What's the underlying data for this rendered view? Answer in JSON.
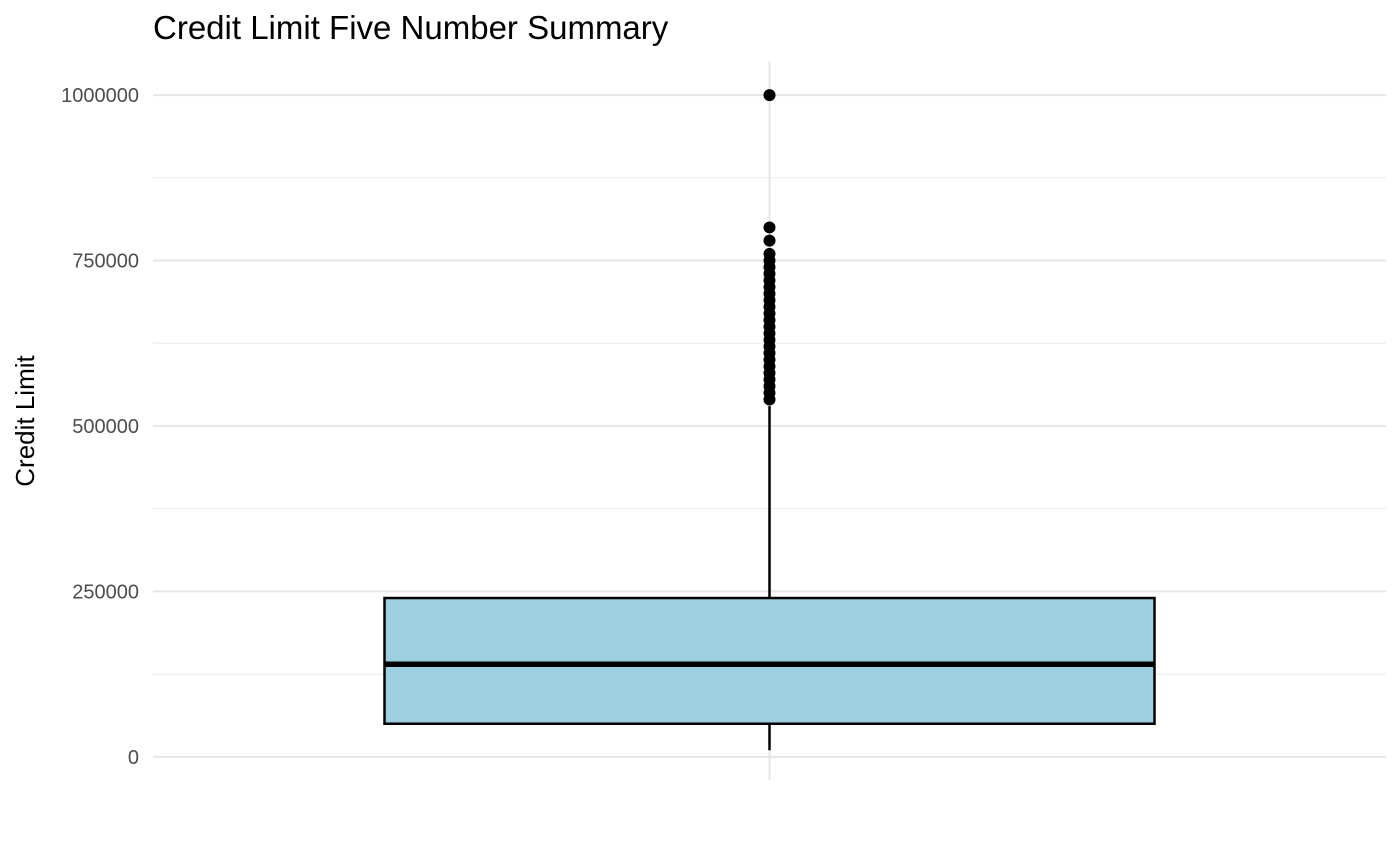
{
  "chart_data": {
    "type": "boxplot",
    "title": "Credit Limit Five Number Summary",
    "xlabel": "",
    "ylabel": "Credit Limit",
    "ylim": [
      -35000,
      1050000
    ],
    "y_ticks": [
      0,
      250000,
      500000,
      750000,
      1000000
    ],
    "y_tick_labels": [
      "0",
      "250000",
      "500000",
      "750000",
      "1000000"
    ],
    "grid": true,
    "legend": "none",
    "box": {
      "min": 10000,
      "q1": 50000,
      "median": 140000,
      "q3": 240000,
      "upper_whisker": 530000
    },
    "outliers": [
      540000,
      550000,
      560000,
      570000,
      580000,
      590000,
      600000,
      610000,
      620000,
      630000,
      640000,
      650000,
      660000,
      670000,
      680000,
      690000,
      700000,
      710000,
      720000,
      730000,
      740000,
      750000,
      760000,
      780000,
      800000,
      1000000
    ],
    "colors": {
      "box_fill": "#9ecfe0",
      "box_stroke": "#000000",
      "grid_major": "#e6e6e6",
      "grid_minor": "#f0f0f0",
      "point": "#000000"
    }
  }
}
